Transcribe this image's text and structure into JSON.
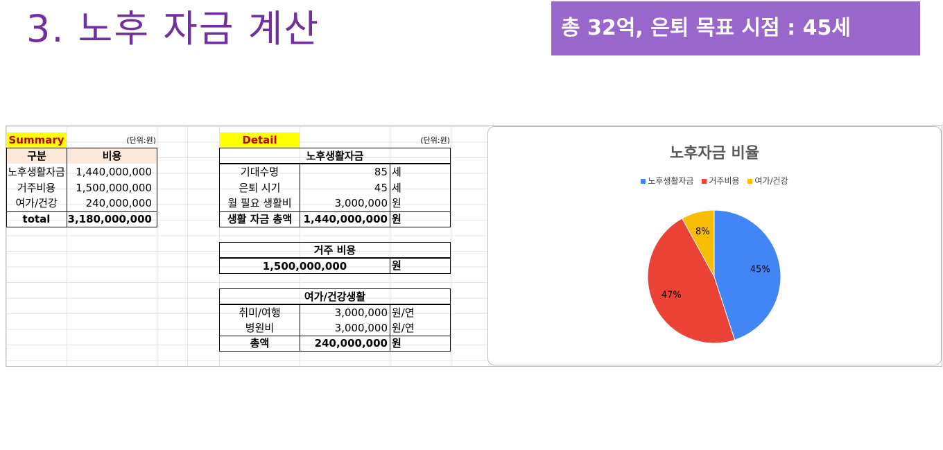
{
  "slide": {
    "title": "3. 노후 자금 계산",
    "badge": "총 32억, 은퇴 목표 시점 : 45세"
  },
  "summary": {
    "label": "Summary",
    "unit": "(단위:원)",
    "headers": [
      "구분",
      "비용"
    ],
    "rows": [
      {
        "name": "노후생활자금",
        "value": "1,440,000,000"
      },
      {
        "name": "거주비용",
        "value": "1,500,000,000"
      },
      {
        "name": "여가/건강",
        "value": "240,000,000"
      }
    ],
    "total": {
      "name": "total",
      "value": "3,180,000,000"
    }
  },
  "detail": {
    "label": "Detail",
    "unit": "(단위:원)",
    "living": {
      "title": "노후생활자금",
      "rows": [
        {
          "name": "기대수명",
          "value": "85",
          "unit": "세"
        },
        {
          "name": "은퇴 시기",
          "value": "45",
          "unit": "세"
        },
        {
          "name": "월 필요 생활비",
          "value": "3,000,000",
          "unit": "원"
        }
      ],
      "total": {
        "name": "생활 자금 총액",
        "value": "1,440,000,000",
        "unit": "원"
      }
    },
    "housing": {
      "title": "거주 비용",
      "value": "1,500,000,000",
      "unit": "원"
    },
    "leisure": {
      "title": "여가/건강생활",
      "rows": [
        {
          "name": "취미/여행",
          "value": "3,000,000",
          "unit": "원/연"
        },
        {
          "name": "병원비",
          "value": "3,000,000",
          "unit": "원/연"
        }
      ],
      "total": {
        "name": "총액",
        "value": "240,000,000",
        "unit": "원"
      }
    }
  },
  "chart_data": {
    "type": "pie",
    "title": "노후자금 비율",
    "categories": [
      "노후생활자금",
      "거주비용",
      "여가/건강"
    ],
    "values": [
      45,
      47,
      8
    ],
    "labels": [
      "45%",
      "47%",
      "8%"
    ],
    "colors": [
      "#4285f4",
      "#ea4335",
      "#fbbc04"
    ],
    "legend": "top"
  }
}
